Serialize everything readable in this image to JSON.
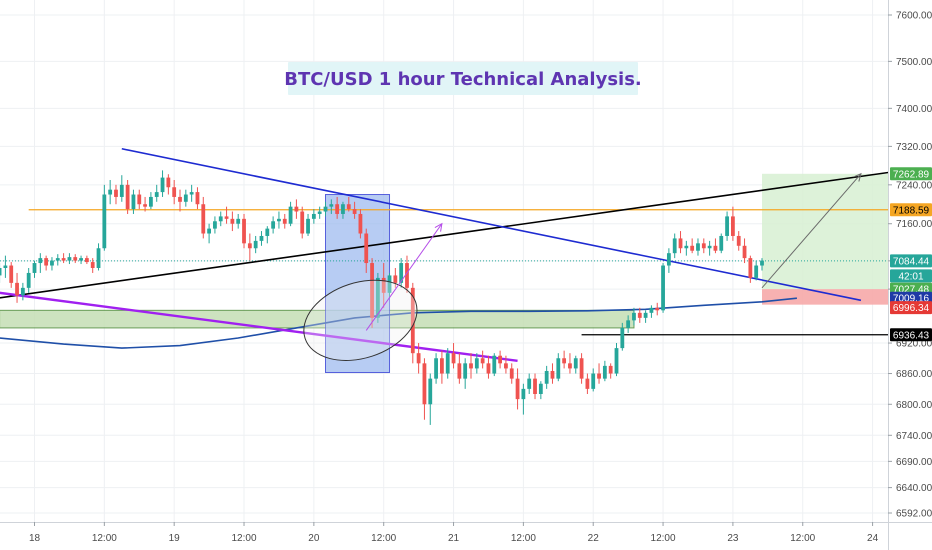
{
  "chart_data": {
    "type": "candlestick",
    "title": "BTC/USD 1 hour Technical Analysis.",
    "y_scale": "log",
    "ylim": [
      6560,
      7650
    ],
    "xlim": [
      -6,
      161
    ],
    "grid": true,
    "y_ticks": [
      "7600.00",
      "7500.00",
      "7400.00",
      "7320.00",
      "7240.00",
      "7160.00",
      "7084.44",
      "7027.48",
      "6920.00",
      "6860.00",
      "6800.00",
      "6740.00",
      "6690.00",
      "6640.00",
      "6592.00"
    ],
    "x_ticks": [
      {
        "x": 0,
        "label": "18"
      },
      {
        "x": 12,
        "label": "12:00"
      },
      {
        "x": 24,
        "label": "19"
      },
      {
        "x": 36,
        "label": "12:00"
      },
      {
        "x": 48,
        "label": "20"
      },
      {
        "x": 60,
        "label": "12:00"
      },
      {
        "x": 72,
        "label": "21"
      },
      {
        "x": 84,
        "label": "12:00"
      },
      {
        "x": 96,
        "label": "22"
      },
      {
        "x": 108,
        "label": "12:00"
      },
      {
        "x": 120,
        "label": "23"
      },
      {
        "x": 132,
        "label": "12:00"
      },
      {
        "x": 144,
        "label": "24"
      }
    ],
    "candle_colors": {
      "up": "#26a69a",
      "down": "#ef5350"
    },
    "candles": [
      [
        -6,
        7055,
        7080,
        7040,
        7070
      ],
      [
        -5,
        7070,
        7095,
        7050,
        7075
      ],
      [
        -4,
        7075,
        7082,
        7030,
        7040
      ],
      [
        -3,
        7040,
        7060,
        7000,
        7015
      ],
      [
        -2,
        7015,
        7040,
        7005,
        7030
      ],
      [
        -1,
        7030,
        7070,
        7020,
        7060
      ],
      [
        0,
        7060,
        7085,
        7050,
        7080
      ],
      [
        1,
        7080,
        7100,
        7060,
        7090
      ],
      [
        2,
        7090,
        7095,
        7065,
        7075
      ],
      [
        3,
        7075,
        7092,
        7065,
        7085
      ],
      [
        4,
        7085,
        7098,
        7075,
        7090
      ],
      [
        5,
        7090,
        7100,
        7080,
        7085
      ],
      [
        6,
        7085,
        7100,
        7078,
        7092
      ],
      [
        7,
        7092,
        7098,
        7080,
        7085
      ],
      [
        8,
        7085,
        7095,
        7078,
        7090
      ],
      [
        9,
        7090,
        7095,
        7078,
        7082
      ],
      [
        10,
        7082,
        7090,
        7060,
        7070
      ],
      [
        11,
        7070,
        7120,
        7065,
        7110
      ],
      [
        12,
        7110,
        7240,
        7105,
        7220
      ],
      [
        13,
        7220,
        7250,
        7200,
        7230
      ],
      [
        14,
        7230,
        7240,
        7200,
        7215
      ],
      [
        15,
        7215,
        7260,
        7205,
        7240
      ],
      [
        16,
        7240,
        7250,
        7180,
        7190
      ],
      [
        17,
        7190,
        7230,
        7180,
        7220
      ],
      [
        18,
        7220,
        7230,
        7190,
        7200
      ],
      [
        19,
        7200,
        7215,
        7185,
        7195
      ],
      [
        20,
        7195,
        7225,
        7190,
        7215
      ],
      [
        21,
        7215,
        7240,
        7205,
        7225
      ],
      [
        22,
        7225,
        7270,
        7215,
        7255
      ],
      [
        23,
        7255,
        7262,
        7220,
        7235
      ],
      [
        24,
        7235,
        7250,
        7200,
        7215
      ],
      [
        25,
        7215,
        7230,
        7185,
        7205
      ],
      [
        26,
        7205,
        7230,
        7195,
        7220
      ],
      [
        27,
        7220,
        7240,
        7205,
        7225
      ],
      [
        28,
        7225,
        7235,
        7190,
        7200
      ],
      [
        29,
        7200,
        7215,
        7130,
        7140
      ],
      [
        30,
        7140,
        7160,
        7120,
        7150
      ],
      [
        31,
        7150,
        7175,
        7140,
        7165
      ],
      [
        32,
        7165,
        7185,
        7155,
        7175
      ],
      [
        33,
        7175,
        7195,
        7160,
        7170
      ],
      [
        34,
        7170,
        7185,
        7145,
        7160
      ],
      [
        35,
        7160,
        7180,
        7150,
        7170
      ],
      [
        36,
        7170,
        7180,
        7110,
        7120
      ],
      [
        37,
        7120,
        7140,
        7085,
        7110
      ],
      [
        38,
        7110,
        7135,
        7100,
        7125
      ],
      [
        39,
        7125,
        7145,
        7115,
        7135
      ],
      [
        40,
        7135,
        7155,
        7120,
        7150
      ],
      [
        41,
        7150,
        7175,
        7140,
        7165
      ],
      [
        42,
        7165,
        7185,
        7150,
        7170
      ],
      [
        43,
        7170,
        7180,
        7150,
        7160
      ],
      [
        44,
        7160,
        7205,
        7155,
        7195
      ],
      [
        45,
        7195,
        7210,
        7170,
        7185
      ],
      [
        46,
        7185,
        7195,
        7130,
        7140
      ],
      [
        47,
        7140,
        7180,
        7135,
        7170
      ],
      [
        48,
        7170,
        7190,
        7160,
        7180
      ],
      [
        49,
        7180,
        7195,
        7170,
        7185
      ],
      [
        50,
        7185,
        7205,
        7175,
        7195
      ],
      [
        51,
        7195,
        7210,
        7180,
        7200
      ],
      [
        52,
        7200,
        7215,
        7170,
        7180
      ],
      [
        53,
        7180,
        7205,
        7170,
        7200
      ],
      [
        54,
        7200,
        7215,
        7185,
        7190
      ],
      [
        55,
        7190,
        7205,
        7170,
        7180
      ],
      [
        56,
        7180,
        7190,
        7130,
        7140
      ],
      [
        57,
        7140,
        7150,
        7060,
        7080
      ],
      [
        58,
        7080,
        7090,
        6950,
        6970
      ],
      [
        59,
        6970,
        7060,
        6960,
        7050
      ],
      [
        60,
        7050,
        7080,
        6990,
        7020
      ],
      [
        61,
        7020,
        7060,
        7010,
        7055
      ],
      [
        62,
        7055,
        7070,
        7030,
        7040
      ],
      [
        63,
        7040,
        7090,
        7030,
        7080
      ],
      [
        64,
        7080,
        7095,
        7020,
        7030
      ],
      [
        65,
        7030,
        7040,
        6880,
        6900
      ],
      [
        66,
        6900,
        6920,
        6860,
        6880
      ],
      [
        67,
        6880,
        6890,
        6770,
        6800
      ],
      [
        68,
        6800,
        6860,
        6760,
        6850
      ],
      [
        69,
        6850,
        6900,
        6840,
        6890
      ],
      [
        70,
        6890,
        6905,
        6840,
        6860
      ],
      [
        71,
        6860,
        6910,
        6850,
        6900
      ],
      [
        72,
        6900,
        6920,
        6870,
        6880
      ],
      [
        73,
        6880,
        6900,
        6840,
        6850
      ],
      [
        74,
        6850,
        6890,
        6830,
        6880
      ],
      [
        75,
        6880,
        6900,
        6850,
        6870
      ],
      [
        76,
        6870,
        6900,
        6860,
        6890
      ],
      [
        77,
        6890,
        6905,
        6870,
        6880
      ],
      [
        78,
        6880,
        6895,
        6850,
        6860
      ],
      [
        79,
        6860,
        6900,
        6855,
        6895
      ],
      [
        80,
        6895,
        6905,
        6870,
        6880
      ],
      [
        81,
        6880,
        6895,
        6860,
        6870
      ],
      [
        82,
        6870,
        6880,
        6840,
        6850
      ],
      [
        83,
        6850,
        6870,
        6790,
        6810
      ],
      [
        84,
        6810,
        6840,
        6780,
        6830
      ],
      [
        85,
        6830,
        6860,
        6820,
        6850
      ],
      [
        86,
        6850,
        6860,
        6810,
        6820
      ],
      [
        87,
        6820,
        6845,
        6810,
        6840
      ],
      [
        88,
        6840,
        6875,
        6830,
        6865
      ],
      [
        89,
        6865,
        6880,
        6840,
        6850
      ],
      [
        90,
        6850,
        6900,
        6845,
        6890
      ],
      [
        91,
        6890,
        6905,
        6870,
        6880
      ],
      [
        92,
        6880,
        6900,
        6860,
        6870
      ],
      [
        93,
        6870,
        6895,
        6860,
        6890
      ],
      [
        94,
        6890,
        6900,
        6840,
        6850
      ],
      [
        95,
        6850,
        6860,
        6820,
        6830
      ],
      [
        96,
        6830,
        6870,
        6825,
        6860
      ],
      [
        97,
        6860,
        6880,
        6840,
        6850
      ],
      [
        98,
        6850,
        6885,
        6845,
        6875
      ],
      [
        99,
        6875,
        6880,
        6850,
        6860
      ],
      [
        100,
        6860,
        6920,
        6855,
        6910
      ],
      [
        101,
        6910,
        6960,
        6905,
        6950
      ],
      [
        102,
        6950,
        6975,
        6940,
        6965
      ],
      [
        103,
        6965,
        6990,
        6955,
        6980
      ],
      [
        104,
        6980,
        6990,
        6960,
        6970
      ],
      [
        105,
        6970,
        6985,
        6960,
        6980
      ],
      [
        106,
        6980,
        6995,
        6970,
        6990
      ],
      [
        107,
        6990,
        7000,
        6975,
        6985
      ],
      [
        108,
        6985,
        7080,
        6980,
        7075
      ],
      [
        109,
        7075,
        7110,
        7060,
        7100
      ],
      [
        110,
        7100,
        7140,
        7090,
        7130
      ],
      [
        111,
        7130,
        7145,
        7100,
        7110
      ],
      [
        112,
        7110,
        7125,
        7095,
        7115
      ],
      [
        113,
        7115,
        7130,
        7100,
        7105
      ],
      [
        114,
        7105,
        7130,
        7095,
        7120
      ],
      [
        115,
        7120,
        7130,
        7100,
        7110
      ],
      [
        116,
        7110,
        7125,
        7095,
        7115
      ],
      [
        117,
        7115,
        7130,
        7100,
        7105
      ],
      [
        118,
        7105,
        7140,
        7100,
        7135
      ],
      [
        119,
        7135,
        7185,
        7125,
        7175
      ],
      [
        120,
        7175,
        7195,
        7125,
        7135
      ],
      [
        121,
        7135,
        7145,
        7105,
        7115
      ],
      [
        122,
        7115,
        7130,
        7080,
        7090
      ],
      [
        123,
        7090,
        7095,
        7040,
        7050
      ],
      [
        124,
        7050,
        7085,
        7045,
        7075
      ],
      [
        125,
        7075,
        7090,
        7065,
        7085
      ]
    ],
    "annotations": {
      "title_box": {
        "fill": "#e1f5f7",
        "text_color": "#5e35b1"
      },
      "resistance_line": {
        "y": 7188.59,
        "x_from": -1,
        "x_to": 161,
        "color": "#f5a623"
      },
      "dotted_price_line": {
        "y": 7084.44,
        "color": "#26a69a"
      },
      "support_line": {
        "y": 6936.43,
        "x_from": 94,
        "x_to": 161,
        "color": "#000000"
      },
      "descending_trendline": {
        "points": [
          [
            15,
            7315
          ],
          [
            142,
            7005
          ]
        ],
        "color": "#1e2bd1"
      },
      "purple_trendline": {
        "points": [
          [
            -6,
            7020
          ],
          [
            83,
            6885
          ]
        ],
        "color": "#a020f0"
      },
      "rising_black_line": {
        "points": [
          [
            -6,
            7010
          ],
          [
            161,
            7290
          ]
        ],
        "color": "#000000"
      },
      "moving_average": {
        "color": "#1f4fa8",
        "points": [
          [
            -6,
            6930
          ],
          [
            5,
            6918
          ],
          [
            15,
            6910
          ],
          [
            25,
            6915
          ],
          [
            35,
            6930
          ],
          [
            45,
            6950
          ],
          [
            55,
            6970
          ],
          [
            65,
            6980
          ],
          [
            75,
            6983
          ],
          [
            85,
            6983
          ],
          [
            95,
            6984
          ],
          [
            105,
            6987
          ],
          [
            115,
            6995
          ],
          [
            125,
            7002
          ],
          [
            131,
            7009.16
          ]
        ]
      },
      "support_zone": {
        "x_from": -6,
        "x_to": 103,
        "y_from": 6950,
        "y_to": 6985,
        "fill": "#c5dfb4",
        "border": "#4e8b3a"
      },
      "blue_box": {
        "x_from": 50,
        "x_to": 61,
        "y_from": 6862,
        "y_to": 7220,
        "fill": "#9fbcef",
        "border": "#1e2bd1"
      },
      "ellipse": {
        "cx": 56,
        "cy": 6965,
        "rx": 10,
        "ry": 75
      },
      "purple_arrow": {
        "from": [
          57,
          6945
        ],
        "to": [
          70,
          7160
        ],
        "color": "#b54ee8"
      },
      "target_arrow": {
        "from": [
          125,
          7030
        ],
        "to": [
          142,
          7262.89
        ],
        "color": "#6a6a6a"
      },
      "long_position": {
        "x_from": 125,
        "x_to": 161,
        "entry": 7027.48,
        "target": 7262.89,
        "stop": 6996.34,
        "profit_fill": "#d7f0d2",
        "loss_fill": "#f6a9a9"
      }
    },
    "price_badges": [
      {
        "label": "7262.89",
        "y": 7262.89,
        "bg": "#4caf50",
        "fg": "#ffffff"
      },
      {
        "label": "7188.59",
        "y": 7188.59,
        "bg": "#f5a623",
        "fg": "#000000"
      },
      {
        "label": "7084.44",
        "y": 7084.44,
        "bg": "#26a69a",
        "fg": "#ffffff"
      },
      {
        "label": "42:01",
        "y": 7054,
        "bg": "#26a69a",
        "fg": "#ffffff"
      },
      {
        "label": "7027.48",
        "y": 7027.48,
        "bg": "#4caf50",
        "fg": "#ffffff"
      },
      {
        "label": "7009.16",
        "y": 7009.16,
        "bg": "#1f3aa6",
        "fg": "#ffffff"
      },
      {
        "label": "6996.34",
        "y": 6990.34,
        "bg": "#e53935",
        "fg": "#ffffff"
      },
      {
        "label": "6936.43",
        "y": 6936.43,
        "bg": "#000000",
        "fg": "#ffffff"
      }
    ]
  }
}
